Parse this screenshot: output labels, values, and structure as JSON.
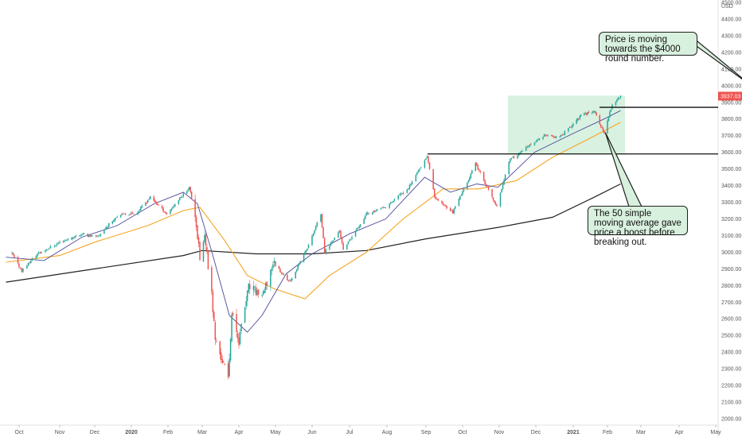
{
  "chart_data": {
    "type": "candlestick",
    "currency": "USD",
    "last_price_label": "3937.03",
    "colors": {
      "up": "#26a69a",
      "down": "#ef5350",
      "ma_fast": "#4a4a9a",
      "ma_50": "#f5a623",
      "ma_200": "#222222",
      "zone": "#d4efdd",
      "price_tag": "#ef5350"
    },
    "x_ticks": [
      "Oct",
      "Nov",
      "Dec",
      "2020",
      "Feb",
      "Mar",
      "Apr",
      "May",
      "Jun",
      "Jul",
      "Aug",
      "Sep",
      "Oct",
      "Nov",
      "Dec",
      "2021",
      "Feb",
      "Mar",
      "Apr",
      "May"
    ],
    "y_ticks": [
      "4500.00",
      "4400.00",
      "4300.00",
      "4200.00",
      "4100.00",
      "4000.00",
      "3900.00",
      "3800.00",
      "3700.00",
      "3600.00",
      "3500.00",
      "3400.00",
      "3300.00",
      "3200.00",
      "3100.00",
      "3000.00",
      "2900.00",
      "2800.00",
      "2700.00",
      "2600.00",
      "2500.00",
      "2400.00",
      "2300.00",
      "2200.00",
      "2100.00",
      "2000.00"
    ],
    "ylim": [
      1975,
      4510
    ],
    "horizontal_levels": [
      3590,
      3870
    ],
    "price_points": [
      [
        "2019-09-25",
        2990
      ],
      [
        "2019-10-03",
        2890
      ],
      [
        "2019-10-15",
        2990
      ],
      [
        "2019-11-01",
        3060
      ],
      [
        "2019-11-20",
        3110
      ],
      [
        "2019-12-03",
        3090
      ],
      [
        "2019-12-20",
        3220
      ],
      [
        "2020-01-06",
        3240
      ],
      [
        "2020-01-17",
        3330
      ],
      [
        "2020-01-31",
        3230
      ],
      [
        "2020-02-19",
        3390
      ],
      [
        "2020-02-24",
        3230
      ],
      [
        "2020-02-28",
        2960
      ],
      [
        "2020-03-03",
        3090
      ],
      [
        "2020-03-09",
        2750
      ],
      [
        "2020-03-12",
        2480
      ],
      [
        "2020-03-16",
        2390
      ],
      [
        "2020-03-23",
        2240
      ],
      [
        "2020-03-26",
        2630
      ],
      [
        "2020-04-01",
        2470
      ],
      [
        "2020-04-09",
        2790
      ],
      [
        "2020-04-21",
        2740
      ],
      [
        "2020-04-29",
        2940
      ],
      [
        "2020-05-13",
        2820
      ],
      [
        "2020-05-29",
        3040
      ],
      [
        "2020-06-08",
        3230
      ],
      [
        "2020-06-11",
        3000
      ],
      [
        "2020-06-23",
        3130
      ],
      [
        "2020-06-26",
        3010
      ],
      [
        "2020-07-15",
        3230
      ],
      [
        "2020-07-31",
        3270
      ],
      [
        "2020-08-18",
        3390
      ],
      [
        "2020-09-02",
        3580
      ],
      [
        "2020-09-08",
        3330
      ],
      [
        "2020-09-23",
        3240
      ],
      [
        "2020-10-12",
        3530
      ],
      [
        "2020-10-30",
        3270
      ],
      [
        "2020-11-09",
        3550
      ],
      [
        "2020-11-24",
        3630
      ],
      [
        "2020-12-08",
        3700
      ],
      [
        "2020-12-21",
        3690
      ],
      [
        "2021-01-08",
        3820
      ],
      [
        "2021-01-20",
        3850
      ],
      [
        "2021-01-29",
        3710
      ],
      [
        "2021-02-05",
        3890
      ],
      [
        "2021-02-12",
        3937
      ]
    ],
    "ma_fast": [
      [
        "2019-09-20",
        2970
      ],
      [
        "2019-10-20",
        2950
      ],
      [
        "2019-11-20",
        3090
      ],
      [
        "2019-12-20",
        3160
      ],
      [
        "2020-01-20",
        3290
      ],
      [
        "2020-02-14",
        3360
      ],
      [
        "2020-02-26",
        3290
      ],
      [
        "2020-03-10",
        2980
      ],
      [
        "2020-03-24",
        2620
      ],
      [
        "2020-04-08",
        2520
      ],
      [
        "2020-04-20",
        2620
      ],
      [
        "2020-05-10",
        2870
      ],
      [
        "2020-06-01",
        2990
      ],
      [
        "2020-07-01",
        3110
      ],
      [
        "2020-07-31",
        3200
      ],
      [
        "2020-08-31",
        3450
      ],
      [
        "2020-09-21",
        3360
      ],
      [
        "2020-10-13",
        3410
      ],
      [
        "2020-10-31",
        3390
      ],
      [
        "2020-11-30",
        3600
      ],
      [
        "2020-12-31",
        3710
      ],
      [
        "2021-01-29",
        3800
      ],
      [
        "2021-02-12",
        3850
      ]
    ],
    "ma_50": [
      [
        "2019-09-20",
        2940
      ],
      [
        "2019-11-01",
        2980
      ],
      [
        "2019-12-01",
        3060
      ],
      [
        "2020-01-15",
        3160
      ],
      [
        "2020-02-14",
        3250
      ],
      [
        "2020-02-28",
        3270
      ],
      [
        "2020-03-20",
        3070
      ],
      [
        "2020-04-08",
        2860
      ],
      [
        "2020-04-30",
        2780
      ],
      [
        "2020-05-26",
        2720
      ],
      [
        "2020-06-15",
        2860
      ],
      [
        "2020-07-15",
        3000
      ],
      [
        "2020-08-14",
        3200
      ],
      [
        "2020-09-15",
        3380
      ],
      [
        "2020-10-15",
        3380
      ],
      [
        "2020-11-15",
        3430
      ],
      [
        "2020-12-15",
        3570
      ],
      [
        "2021-01-15",
        3680
      ],
      [
        "2021-02-12",
        3780
      ]
    ],
    "ma_200": [
      [
        "2019-09-20",
        2820
      ],
      [
        "2019-12-01",
        2900
      ],
      [
        "2020-02-14",
        2980
      ],
      [
        "2020-03-01",
        3010
      ],
      [
        "2020-04-15",
        2990
      ],
      [
        "2020-06-01",
        2990
      ],
      [
        "2020-07-15",
        3010
      ],
      [
        "2020-09-01",
        3080
      ],
      [
        "2020-11-01",
        3150
      ],
      [
        "2020-12-15",
        3210
      ],
      [
        "2021-01-20",
        3330
      ],
      [
        "2021-02-12",
        3410
      ]
    ],
    "annotations": [
      {
        "text": "Price is moving towards the $4000 round number.",
        "target": [
          "2021-05-30",
          3995
        ]
      },
      {
        "text": "The 50 simple moving average gave price a boost before breaking out.",
        "target": [
          "2021-01-30",
          3720
        ]
      }
    ]
  }
}
